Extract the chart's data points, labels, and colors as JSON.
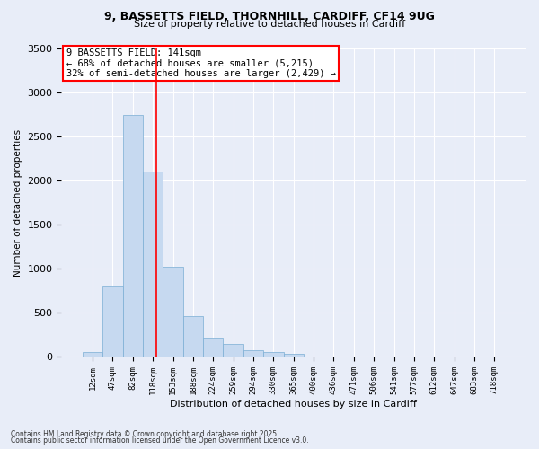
{
  "title_line1": "9, BASSETTS FIELD, THORNHILL, CARDIFF, CF14 9UG",
  "title_line2": "Size of property relative to detached houses in Cardiff",
  "xlabel": "Distribution of detached houses by size in Cardiff",
  "ylabel": "Number of detached properties",
  "bin_labels": [
    "12sqm",
    "47sqm",
    "82sqm",
    "118sqm",
    "153sqm",
    "188sqm",
    "224sqm",
    "259sqm",
    "294sqm",
    "330sqm",
    "365sqm",
    "400sqm",
    "436sqm",
    "471sqm",
    "506sqm",
    "541sqm",
    "577sqm",
    "612sqm",
    "647sqm",
    "683sqm",
    "718sqm"
  ],
  "bar_values": [
    60,
    800,
    2750,
    2100,
    1020,
    460,
    220,
    150,
    80,
    60,
    40,
    0,
    0,
    0,
    0,
    0,
    0,
    0,
    0,
    0,
    0
  ],
  "bar_color": "#c6d9f0",
  "bar_edgecolor": "#7aadd4",
  "vline_color": "red",
  "vline_pos": 3.16,
  "annotation_text": "9 BASSETTS FIELD: 141sqm\n← 68% of detached houses are smaller (5,215)\n32% of semi-detached houses are larger (2,429) →",
  "ylim": [
    0,
    3500
  ],
  "yticks": [
    0,
    500,
    1000,
    1500,
    2000,
    2500,
    3000,
    3500
  ],
  "bg_color": "#e8edf8",
  "plot_bg_color": "#e8edf8",
  "footer_line1": "Contains HM Land Registry data © Crown copyright and database right 2025.",
  "footer_line2": "Contains public sector information licensed under the Open Government Licence v3.0."
}
